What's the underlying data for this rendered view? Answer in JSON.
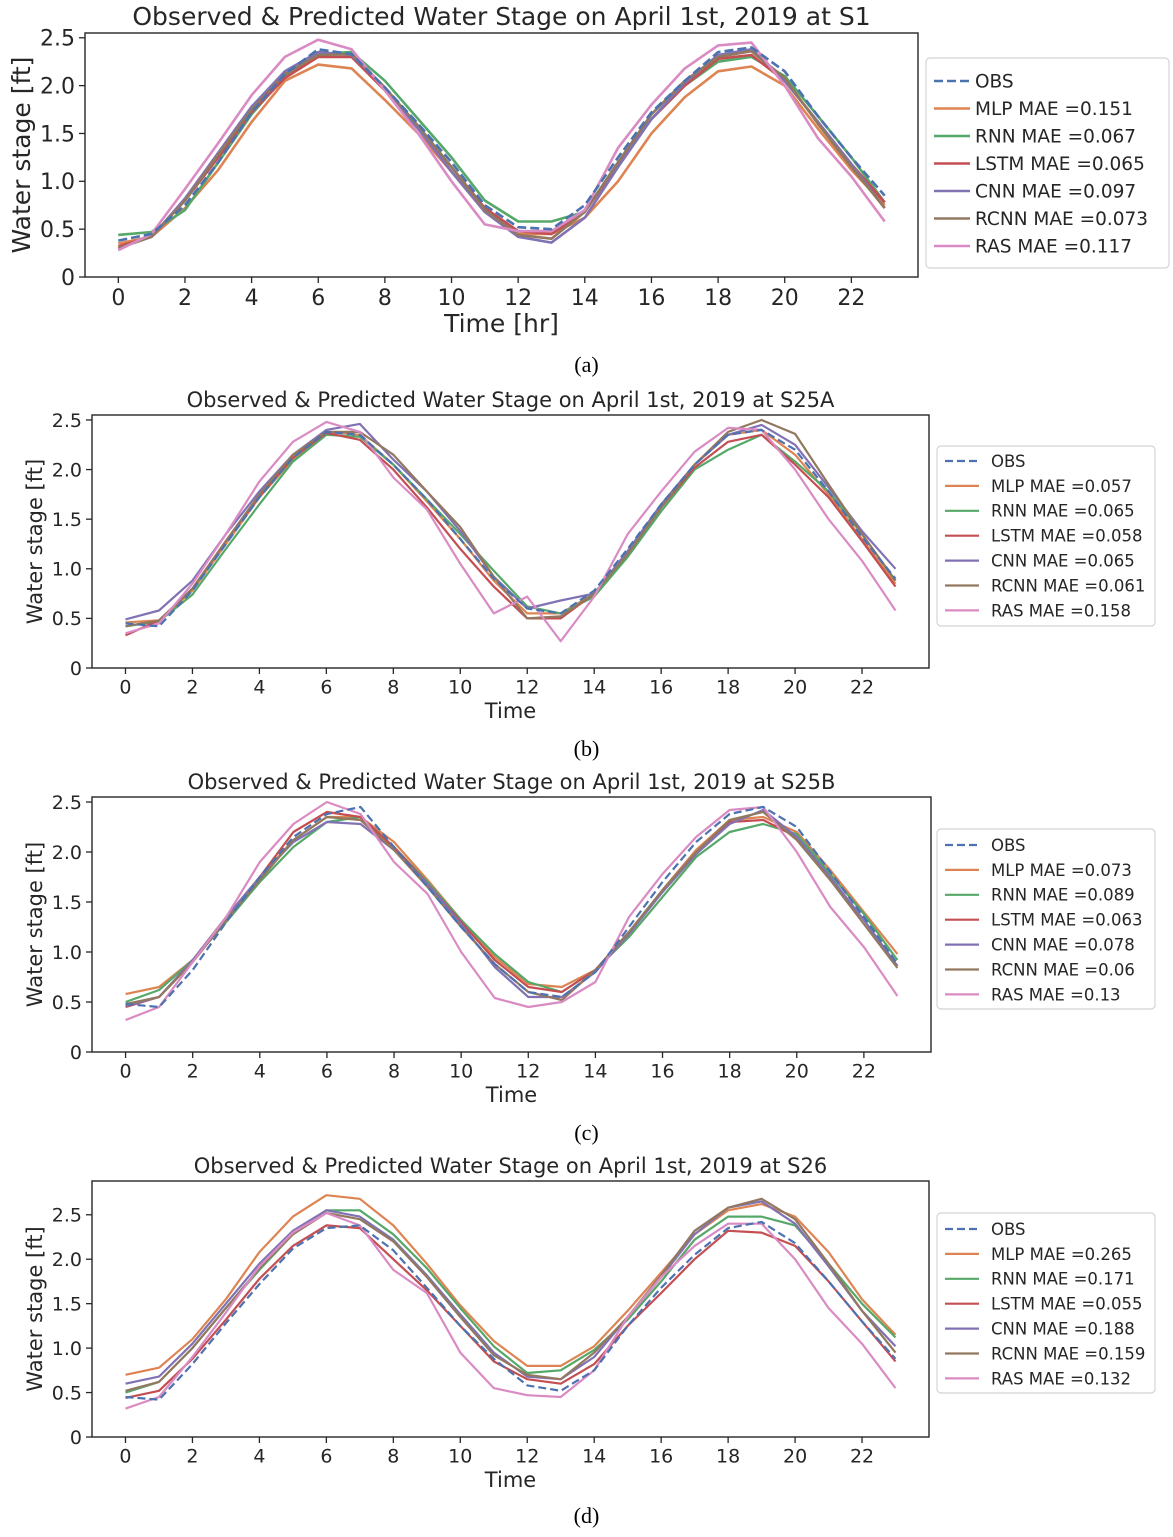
{
  "figure": {
    "captions": [
      "(a)",
      "(b)",
      "(c)",
      "(d)"
    ],
    "series_colors": {
      "OBS": "#4c72b0",
      "MLP": "#dd8452",
      "RNN": "#55a868",
      "LSTM": "#c44e52",
      "CNN": "#8172b3",
      "RCNN": "#937860",
      "RAS": "#da8bc3"
    }
  },
  "chart_data": [
    {
      "type": "line",
      "title": "Observed & Predicted Water Stage on April 1st, 2019 at S1",
      "xlabel": "Time [hr]",
      "ylabel": "Water stage [ft]",
      "xlim": [
        -1,
        24
      ],
      "ylim": [
        0,
        2.55
      ],
      "xticks": [
        "0",
        "2",
        "4",
        "6",
        "8",
        "10",
        "12",
        "14",
        "16",
        "18",
        "20",
        "22"
      ],
      "yticks": [
        "0",
        "0.5",
        "1.0",
        "1.5",
        "2.0",
        "2.5"
      ],
      "grid": false,
      "legend": "right-outside",
      "x": [
        0,
        1,
        2,
        3,
        4,
        5,
        6,
        7,
        8,
        9,
        10,
        11,
        12,
        13,
        14,
        15,
        16,
        17,
        18,
        19,
        20,
        21,
        22,
        23
      ],
      "series": [
        {
          "name": "OBS",
          "dashed": true,
          "values": [
            0.38,
            0.45,
            0.75,
            1.2,
            1.72,
            2.12,
            2.38,
            2.33,
            1.98,
            1.6,
            1.2,
            0.75,
            0.52,
            0.5,
            0.75,
            1.25,
            1.72,
            2.05,
            2.35,
            2.4,
            2.15,
            1.68,
            1.25,
            0.85
          ]
        },
        {
          "name": "MLP MAE =0.151",
          "values": [
            0.35,
            0.42,
            0.72,
            1.12,
            1.62,
            2.05,
            2.22,
            2.18,
            1.85,
            1.5,
            1.1,
            0.68,
            0.45,
            0.45,
            0.62,
            1.0,
            1.5,
            1.88,
            2.15,
            2.2,
            2.0,
            1.55,
            1.12,
            0.75
          ]
        },
        {
          "name": "RNN MAE =0.067",
          "values": [
            0.44,
            0.47,
            0.7,
            1.2,
            1.7,
            2.1,
            2.33,
            2.35,
            2.05,
            1.65,
            1.25,
            0.8,
            0.58,
            0.58,
            0.68,
            1.2,
            1.65,
            2.0,
            2.25,
            2.3,
            2.1,
            1.68,
            1.25,
            0.78
          ]
        },
        {
          "name": "LSTM MAE =0.065",
          "values": [
            0.32,
            0.42,
            0.8,
            1.25,
            1.72,
            2.08,
            2.3,
            2.3,
            1.95,
            1.55,
            1.15,
            0.72,
            0.48,
            0.45,
            0.68,
            1.18,
            1.65,
            2.0,
            2.28,
            2.32,
            2.05,
            1.62,
            1.18,
            0.78
          ]
        },
        {
          "name": "CNN MAE =0.097",
          "values": [
            0.3,
            0.42,
            0.82,
            1.3,
            1.78,
            2.15,
            2.35,
            2.32,
            1.98,
            1.55,
            1.1,
            0.68,
            0.42,
            0.36,
            0.62,
            1.15,
            1.65,
            2.03,
            2.32,
            2.38,
            2.05,
            1.62,
            1.18,
            0.72
          ]
        },
        {
          "name": "RCNN MAE =0.073",
          "values": [
            0.3,
            0.42,
            0.8,
            1.28,
            1.75,
            2.12,
            2.32,
            2.33,
            1.98,
            1.58,
            1.15,
            0.7,
            0.44,
            0.4,
            0.68,
            1.2,
            1.7,
            2.05,
            2.3,
            2.36,
            2.08,
            1.6,
            1.15,
            0.72
          ]
        },
        {
          "name": "RAS MAE =0.117",
          "values": [
            0.28,
            0.45,
            0.92,
            1.4,
            1.9,
            2.3,
            2.48,
            2.38,
            1.95,
            1.5,
            1.0,
            0.55,
            0.48,
            0.48,
            0.7,
            1.35,
            1.8,
            2.18,
            2.42,
            2.45,
            2.0,
            1.45,
            1.05,
            0.58
          ]
        }
      ]
    },
    {
      "type": "line",
      "title": "Observed & Predicted Water Stage on April 1st, 2019 at S25A",
      "xlabel": "Time",
      "ylabel": "Water stage [ft]",
      "xlim": [
        -1,
        24
      ],
      "ylim": [
        0,
        2.55
      ],
      "xticks": [
        "0",
        "2",
        "4",
        "6",
        "8",
        "10",
        "12",
        "14",
        "16",
        "18",
        "20",
        "22"
      ],
      "yticks": [
        "0",
        "0.5",
        "1.0",
        "1.5",
        "2.0",
        "2.5"
      ],
      "grid": false,
      "legend": "right-outside",
      "x": [
        0,
        1,
        2,
        3,
        4,
        5,
        6,
        7,
        8,
        9,
        10,
        11,
        12,
        13,
        14,
        15,
        16,
        17,
        18,
        19,
        20,
        21,
        22,
        23
      ],
      "series": [
        {
          "name": "OBS",
          "dashed": true,
          "values": [
            0.45,
            0.42,
            0.78,
            1.25,
            1.72,
            2.12,
            2.38,
            2.35,
            2.05,
            1.7,
            1.3,
            0.9,
            0.6,
            0.55,
            0.78,
            1.2,
            1.65,
            2.05,
            2.35,
            2.4,
            2.2,
            1.78,
            1.32,
            0.9
          ]
        },
        {
          "name": "MLP MAE =0.057",
          "values": [
            0.46,
            0.48,
            0.78,
            1.25,
            1.72,
            2.1,
            2.38,
            2.35,
            2.05,
            1.68,
            1.3,
            0.88,
            0.55,
            0.55,
            0.75,
            1.15,
            1.62,
            2.05,
            2.35,
            2.4,
            2.15,
            1.75,
            1.3,
            0.85
          ]
        },
        {
          "name": "RNN MAE =0.065",
          "values": [
            0.42,
            0.47,
            0.74,
            1.2,
            1.65,
            2.08,
            2.35,
            2.33,
            2.05,
            1.7,
            1.35,
            0.98,
            0.62,
            0.55,
            0.72,
            1.12,
            1.58,
            2.0,
            2.2,
            2.35,
            2.08,
            1.78,
            1.35,
            0.88
          ]
        },
        {
          "name": "LSTM MAE =0.058",
          "values": [
            0.33,
            0.48,
            0.8,
            1.28,
            1.73,
            2.12,
            2.37,
            2.3,
            2.0,
            1.62,
            1.2,
            0.82,
            0.5,
            0.5,
            0.75,
            1.15,
            1.62,
            2.02,
            2.28,
            2.35,
            2.05,
            1.72,
            1.28,
            0.82
          ]
        },
        {
          "name": "CNN MAE =0.065",
          "values": [
            0.49,
            0.58,
            0.88,
            1.35,
            1.78,
            2.15,
            2.4,
            2.46,
            2.1,
            1.78,
            1.38,
            0.92,
            0.6,
            0.68,
            0.75,
            1.18,
            1.65,
            2.05,
            2.35,
            2.45,
            2.25,
            1.82,
            1.38,
            1.0
          ]
        },
        {
          "name": "RCNN MAE =0.061",
          "values": [
            0.42,
            0.48,
            0.8,
            1.28,
            1.75,
            2.15,
            2.38,
            2.38,
            2.15,
            1.78,
            1.42,
            0.92,
            0.5,
            0.52,
            0.75,
            1.15,
            1.62,
            2.05,
            2.38,
            2.5,
            2.36,
            1.85,
            1.35,
            0.88
          ]
        },
        {
          "name": "RAS MAE =0.158",
          "values": [
            0.35,
            0.45,
            0.85,
            1.35,
            1.88,
            2.28,
            2.48,
            2.38,
            1.92,
            1.6,
            1.05,
            0.55,
            0.72,
            0.27,
            0.72,
            1.35,
            1.78,
            2.18,
            2.42,
            2.4,
            2.0,
            1.5,
            1.08,
            0.58
          ]
        }
      ]
    },
    {
      "type": "line",
      "title": "Observed & Predicted Water Stage on April 1st, 2019 at S25B",
      "xlabel": "Time",
      "ylabel": "Water stage [ft]",
      "xlim": [
        -1,
        24
      ],
      "ylim": [
        0,
        2.55
      ],
      "xticks": [
        "0",
        "2",
        "4",
        "6",
        "8",
        "10",
        "12",
        "14",
        "16",
        "18",
        "20",
        "22"
      ],
      "yticks": [
        "0",
        "0.5",
        "1.0",
        "1.5",
        "2.0",
        "2.5"
      ],
      "grid": false,
      "legend": "right-outside",
      "x": [
        0,
        1,
        2,
        3,
        4,
        5,
        6,
        7,
        8,
        9,
        10,
        11,
        12,
        13,
        14,
        15,
        16,
        17,
        18,
        19,
        20,
        21,
        22,
        23
      ],
      "series": [
        {
          "name": "OBS",
          "dashed": true,
          "values": [
            0.48,
            0.45,
            0.82,
            1.3,
            1.75,
            2.15,
            2.38,
            2.45,
            2.05,
            1.65,
            1.25,
            0.88,
            0.6,
            0.55,
            0.8,
            1.25,
            1.7,
            2.1,
            2.38,
            2.45,
            2.25,
            1.8,
            1.35,
            0.88
          ]
        },
        {
          "name": "MLP MAE =0.073",
          "values": [
            0.58,
            0.65,
            0.92,
            1.35,
            1.75,
            2.12,
            2.35,
            2.35,
            2.1,
            1.72,
            1.32,
            0.95,
            0.68,
            0.65,
            0.82,
            1.2,
            1.62,
            2.02,
            2.32,
            2.35,
            2.2,
            1.82,
            1.4,
            0.98
          ]
        },
        {
          "name": "RNN MAE =0.089",
          "values": [
            0.5,
            0.62,
            0.92,
            1.3,
            1.7,
            2.05,
            2.3,
            2.35,
            2.05,
            1.7,
            1.32,
            0.98,
            0.7,
            0.6,
            0.82,
            1.15,
            1.55,
            1.95,
            2.2,
            2.28,
            2.18,
            1.78,
            1.38,
            0.92
          ]
        },
        {
          "name": "LSTM MAE =0.063",
          "values": [
            0.45,
            0.55,
            0.9,
            1.32,
            1.75,
            2.2,
            2.4,
            2.35,
            2.05,
            1.68,
            1.3,
            0.92,
            0.65,
            0.6,
            0.82,
            1.2,
            1.6,
            1.98,
            2.3,
            2.32,
            2.15,
            1.72,
            1.32,
            0.86
          ]
        },
        {
          "name": "CNN MAE =0.078",
          "values": [
            0.46,
            0.55,
            0.92,
            1.35,
            1.75,
            2.1,
            2.3,
            2.28,
            2.02,
            1.68,
            1.28,
            0.85,
            0.55,
            0.55,
            0.8,
            1.18,
            1.6,
            1.98,
            2.28,
            2.42,
            2.15,
            1.75,
            1.32,
            0.86
          ]
        },
        {
          "name": "RCNN MAE =0.06",
          "values": [
            0.48,
            0.55,
            0.9,
            1.32,
            1.72,
            2.12,
            2.35,
            2.32,
            2.02,
            1.65,
            1.25,
            0.88,
            0.6,
            0.52,
            0.82,
            1.2,
            1.62,
            2.0,
            2.32,
            2.4,
            2.12,
            1.72,
            1.28,
            0.84
          ]
        },
        {
          "name": "RAS MAE =0.13",
          "values": [
            0.32,
            0.45,
            0.9,
            1.35,
            1.9,
            2.28,
            2.5,
            2.38,
            1.9,
            1.58,
            1.0,
            0.54,
            0.45,
            0.5,
            0.7,
            1.35,
            1.78,
            2.15,
            2.42,
            2.45,
            2.0,
            1.45,
            1.05,
            0.56
          ]
        }
      ]
    },
    {
      "type": "line",
      "title": "Observed & Predicted Water Stage on April 1st, 2019 at S26",
      "xlabel": "Time",
      "ylabel": "Water stage [ft]",
      "xlim": [
        -1,
        24
      ],
      "ylim": [
        0,
        2.88
      ],
      "xticks": [
        "0",
        "2",
        "4",
        "6",
        "8",
        "10",
        "12",
        "14",
        "16",
        "18",
        "20",
        "22"
      ],
      "yticks": [
        "0",
        "0.5",
        "1.0",
        "1.5",
        "2.0",
        "2.5"
      ],
      "grid": false,
      "legend": "right-outside",
      "x": [
        0,
        1,
        2,
        3,
        4,
        5,
        6,
        7,
        8,
        9,
        10,
        11,
        12,
        13,
        14,
        15,
        16,
        17,
        18,
        19,
        20,
        21,
        22,
        23
      ],
      "series": [
        {
          "name": "OBS",
          "dashed": true,
          "values": [
            0.45,
            0.42,
            0.82,
            1.28,
            1.72,
            2.12,
            2.35,
            2.38,
            2.1,
            1.68,
            1.25,
            0.88,
            0.58,
            0.52,
            0.75,
            1.25,
            1.68,
            2.05,
            2.35,
            2.42,
            2.18,
            1.75,
            1.3,
            0.88
          ]
        },
        {
          "name": "MLP MAE =0.265",
          "values": [
            0.7,
            0.78,
            1.1,
            1.55,
            2.08,
            2.48,
            2.72,
            2.68,
            2.38,
            1.95,
            1.48,
            1.08,
            0.8,
            0.8,
            1.02,
            1.42,
            1.85,
            2.28,
            2.55,
            2.62,
            2.48,
            2.08,
            1.55,
            1.15
          ]
        },
        {
          "name": "RNN MAE =0.171",
          "values": [
            0.5,
            0.62,
            1.0,
            1.45,
            1.88,
            2.28,
            2.55,
            2.55,
            2.28,
            1.9,
            1.45,
            1.02,
            0.72,
            0.75,
            0.98,
            1.32,
            1.75,
            2.22,
            2.48,
            2.48,
            2.38,
            1.95,
            1.5,
            1.12
          ]
        },
        {
          "name": "LSTM MAE =0.055",
          "values": [
            0.44,
            0.52,
            0.88,
            1.32,
            1.78,
            2.15,
            2.38,
            2.35,
            2.0,
            1.65,
            1.25,
            0.85,
            0.65,
            0.6,
            0.82,
            1.25,
            1.62,
            2.0,
            2.32,
            2.3,
            2.15,
            1.75,
            1.3,
            0.85
          ]
        },
        {
          "name": "CNN MAE =0.188",
          "values": [
            0.6,
            0.68,
            1.05,
            1.5,
            1.95,
            2.32,
            2.55,
            2.48,
            2.22,
            1.82,
            1.38,
            0.95,
            0.68,
            0.65,
            0.9,
            1.35,
            1.8,
            2.28,
            2.58,
            2.65,
            2.4,
            1.92,
            1.42,
            1.02
          ]
        },
        {
          "name": "RCNN MAE =0.159",
          "values": [
            0.52,
            0.62,
            1.0,
            1.45,
            1.9,
            2.28,
            2.52,
            2.45,
            2.2,
            1.8,
            1.35,
            0.92,
            0.7,
            0.65,
            0.95,
            1.35,
            1.82,
            2.32,
            2.58,
            2.68,
            2.45,
            1.95,
            1.42,
            0.95
          ]
        },
        {
          "name": "RAS MAE =0.132",
          "values": [
            0.32,
            0.45,
            0.9,
            1.4,
            1.92,
            2.3,
            2.52,
            2.38,
            1.88,
            1.62,
            0.95,
            0.55,
            0.47,
            0.45,
            0.75,
            1.35,
            1.8,
            2.15,
            2.4,
            2.4,
            2.0,
            1.45,
            1.05,
            0.55
          ]
        }
      ]
    }
  ]
}
